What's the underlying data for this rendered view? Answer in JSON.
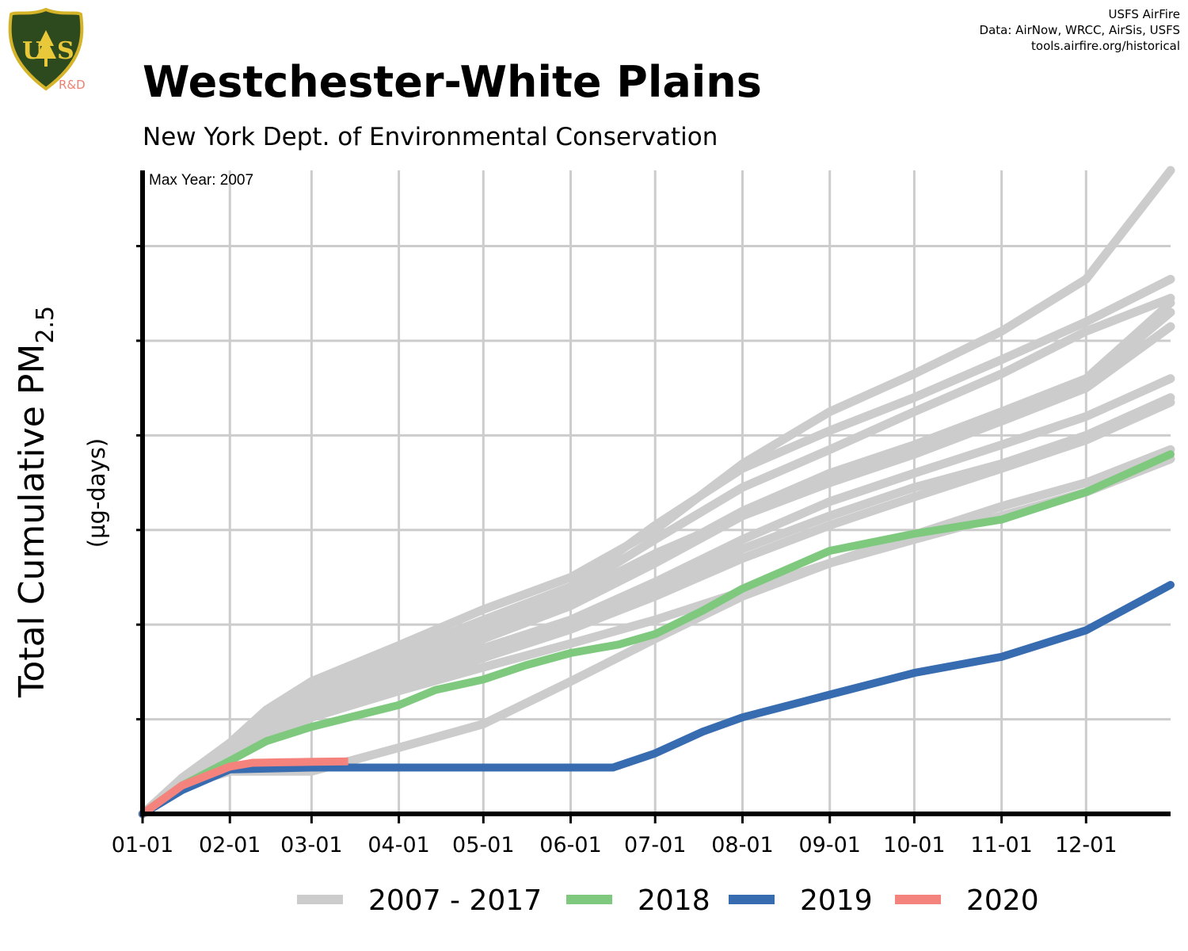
{
  "header": {
    "title": "Westchester-White Plains",
    "subtitle": "New York Dept. of Environmental Conservation",
    "credits": [
      "USFS AirFire",
      "Data: AirNow, WRCC, AirSis, USFS",
      "tools.airfire.org/historical"
    ],
    "logo_text": "R&D"
  },
  "colors": {
    "historic": "#cccccc",
    "y2018": "#7fc97f",
    "y2019": "#386cb0",
    "y2020": "#f4837d",
    "grid": "#cccccc"
  },
  "chart_data": {
    "type": "line",
    "title": "Westchester-White Plains",
    "subtitle": "New York Dept. of Environmental Conservation",
    "ylabel_main": "Total Cumulative PM",
    "ylabel_sub": "2.5",
    "ylabel_units": "(µg-days)",
    "annotation": "Max Year: 2007",
    "x_unit": "day of year",
    "xlim": [
      1,
      366
    ],
    "ylim": [
      0,
      6800
    ],
    "x_ticks": [
      {
        "day": 1,
        "label": "01-01"
      },
      {
        "day": 32,
        "label": "02-01"
      },
      {
        "day": 61,
        "label": "03-01"
      },
      {
        "day": 92,
        "label": "04-01"
      },
      {
        "day": 122,
        "label": "05-01"
      },
      {
        "day": 153,
        "label": "06-01"
      },
      {
        "day": 183,
        "label": "07-01"
      },
      {
        "day": 214,
        "label": "08-01"
      },
      {
        "day": 245,
        "label": "09-01"
      },
      {
        "day": 275,
        "label": "10-01"
      },
      {
        "day": 306,
        "label": "11-01"
      },
      {
        "day": 336,
        "label": "12-01"
      }
    ],
    "y_ticks": [
      1000,
      2000,
      3000,
      4000,
      5000,
      6000
    ],
    "grid": true,
    "legend_position": "bottom",
    "legend": [
      "2007 - 2017",
      "2018",
      "2019",
      "2020"
    ],
    "series": [
      {
        "group": "2007 - 2017",
        "x": [
          1,
          15,
          32,
          45,
          61,
          92,
          122,
          153,
          183,
          214,
          245,
          275,
          306,
          336,
          366
        ],
        "y": [
          0,
          380,
          750,
          1100,
          1400,
          1780,
          2160,
          2500,
          3000,
          3700,
          4250,
          4650,
          5100,
          5650,
          6800
        ]
      },
      {
        "group": "2007 - 2017",
        "x": [
          1,
          15,
          32,
          45,
          61,
          92,
          122,
          153,
          183,
          214,
          245,
          275,
          306,
          336,
          366
        ],
        "y": [
          0,
          350,
          700,
          1000,
          1300,
          1700,
          2050,
          2400,
          3050,
          3650,
          4050,
          4400,
          4800,
          5200,
          5650
        ]
      },
      {
        "group": "2007 - 2017",
        "x": [
          1,
          15,
          32,
          45,
          61,
          92,
          122,
          153,
          183,
          214,
          245,
          275,
          306,
          336,
          366
        ],
        "y": [
          0,
          340,
          680,
          970,
          1250,
          1650,
          2000,
          2350,
          2900,
          3450,
          3850,
          4250,
          4650,
          5100,
          5450
        ]
      },
      {
        "group": "2007 - 2017",
        "x": [
          1,
          15,
          32,
          45,
          61,
          92,
          122,
          153,
          183,
          214,
          245,
          275,
          306,
          336,
          366
        ],
        "y": [
          0,
          320,
          640,
          900,
          1150,
          1550,
          1900,
          2250,
          2700,
          3200,
          3600,
          3900,
          4250,
          4600,
          5400
        ]
      },
      {
        "group": "2007 - 2017",
        "x": [
          1,
          15,
          32,
          45,
          61,
          92,
          122,
          153,
          183,
          214,
          245,
          275,
          306,
          336,
          366
        ],
        "y": [
          0,
          330,
          660,
          930,
          1200,
          1600,
          1950,
          2300,
          2750,
          3150,
          3550,
          3850,
          4150,
          4550,
          5300
        ]
      },
      {
        "group": "2007 - 2017",
        "x": [
          1,
          15,
          32,
          45,
          61,
          92,
          122,
          153,
          183,
          214,
          245,
          275,
          306,
          336,
          366
        ],
        "y": [
          0,
          300,
          620,
          880,
          1120,
          1500,
          1850,
          2200,
          2650,
          3150,
          3500,
          3800,
          4150,
          4500,
          5150
        ]
      },
      {
        "group": "2007 - 2017",
        "x": [
          1,
          15,
          32,
          45,
          61,
          92,
          122,
          153,
          183,
          214,
          245,
          275,
          306,
          336,
          366
        ],
        "y": [
          0,
          310,
          630,
          890,
          1130,
          1450,
          1750,
          2050,
          2450,
          2900,
          3300,
          3600,
          3900,
          4200,
          4600
        ]
      },
      {
        "group": "2007 - 2017",
        "x": [
          1,
          15,
          32,
          45,
          61,
          92,
          122,
          153,
          183,
          214,
          245,
          275,
          306,
          336,
          366
        ],
        "y": [
          0,
          290,
          600,
          850,
          1100,
          1400,
          1700,
          2000,
          2350,
          2800,
          3150,
          3450,
          3700,
          4000,
          4400
        ]
      },
      {
        "group": "2007 - 2017",
        "x": [
          1,
          15,
          32,
          45,
          61,
          92,
          122,
          153,
          183,
          214,
          245,
          275,
          306,
          336,
          366
        ],
        "y": [
          0,
          280,
          580,
          820,
          1060,
          1350,
          1650,
          1950,
          2300,
          2700,
          3050,
          3350,
          3650,
          3950,
          4350
        ]
      },
      {
        "group": "2007 - 2017",
        "x": [
          1,
          15,
          32,
          45,
          61,
          92,
          122,
          153,
          183,
          214,
          245,
          275,
          306,
          336,
          366
        ],
        "y": [
          0,
          300,
          450,
          450,
          450,
          700,
          950,
          1400,
          1850,
          2300,
          2650,
          2950,
          3250,
          3500,
          3850
        ]
      },
      {
        "group": "2007 - 2017",
        "x": [
          1,
          15,
          32,
          45,
          61,
          92,
          122,
          153,
          183,
          214,
          245,
          275,
          306,
          336,
          366
        ],
        "y": [
          0,
          270,
          560,
          800,
          1020,
          1300,
          1550,
          1800,
          2050,
          2350,
          2650,
          2900,
          3150,
          3400,
          3750
        ]
      },
      {
        "group": "2018",
        "x": [
          1,
          15,
          32,
          45,
          61,
          92,
          105,
          122,
          137,
          153,
          170,
          183,
          200,
          214,
          245,
          275,
          306,
          336,
          366
        ],
        "y": [
          0,
          300,
          560,
          770,
          920,
          1150,
          1310,
          1420,
          1570,
          1700,
          1790,
          1900,
          2150,
          2380,
          2780,
          2960,
          3110,
          3400,
          3800
        ]
      },
      {
        "group": "2019",
        "x": [
          1,
          15,
          32,
          61,
          92,
          122,
          153,
          168,
          183,
          200,
          214,
          245,
          275,
          306,
          336,
          366
        ],
        "y": [
          0,
          250,
          470,
          490,
          490,
          490,
          490,
          490,
          640,
          870,
          1020,
          1260,
          1490,
          1660,
          1940,
          2420
        ]
      },
      {
        "group": "2020",
        "x": [
          1,
          15,
          32,
          40,
          50,
          61,
          74
        ],
        "y": [
          0,
          300,
          500,
          540,
          545,
          550,
          555
        ]
      }
    ]
  }
}
